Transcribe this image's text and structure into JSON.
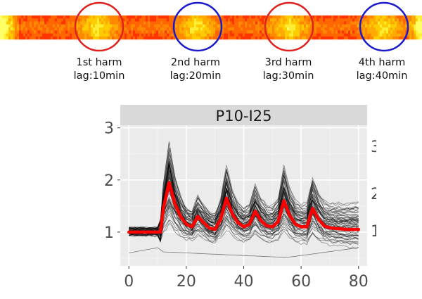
{
  "heatmap": {
    "harmonics": [
      {
        "label": "1st harm",
        "lag": "lag:10min",
        "ring_color": "#e02020"
      },
      {
        "label": "2nd harm",
        "lag": "lag:20min",
        "ring_color": "#1a1acc"
      },
      {
        "label": "3rd harm",
        "lag": "lag:30min",
        "ring_color": "#e02020"
      },
      {
        "label": "4th harm",
        "lag": "lag:40min",
        "ring_color": "#1a1acc"
      }
    ]
  },
  "chart_data": {
    "type": "line",
    "facet_title": "P10-I25",
    "xlabel": "",
    "ylabel": "",
    "xlim": [
      -3,
      83
    ],
    "ylim": [
      0.35,
      3.05
    ],
    "x_ticks": [
      0,
      20,
      40,
      60,
      80
    ],
    "x_tick_labels": [
      "0",
      "20",
      "40",
      "60",
      "80"
    ],
    "y_ticks": [
      1,
      2,
      3
    ],
    "y_tick_labels": [
      "1",
      "2",
      "3"
    ],
    "grid": true,
    "background": "#ebebeb",
    "strip_color": "#d9d9d9",
    "series": [
      {
        "color": "#ff0000",
        "emphasis": "mean",
        "x": [
          0,
          4,
          8,
          11,
          12,
          14,
          16,
          18,
          20,
          22,
          24,
          26,
          28,
          30,
          32,
          34,
          36,
          38,
          40,
          42,
          44,
          46,
          48,
          50,
          52,
          54,
          56,
          58,
          60,
          62,
          64,
          66,
          68,
          70,
          72,
          74,
          76,
          78,
          80
        ],
        "y": [
          1.0,
          1.0,
          1.0,
          1.0,
          1.45,
          1.95,
          1.55,
          1.3,
          1.15,
          1.1,
          1.3,
          1.18,
          1.08,
          1.05,
          1.25,
          1.65,
          1.35,
          1.18,
          1.1,
          1.15,
          1.4,
          1.22,
          1.12,
          1.1,
          1.2,
          1.6,
          1.32,
          1.15,
          1.1,
          1.1,
          1.45,
          1.25,
          1.12,
          1.08,
          1.07,
          1.06,
          1.05,
          1.05,
          1.05
        ]
      }
    ]
  }
}
